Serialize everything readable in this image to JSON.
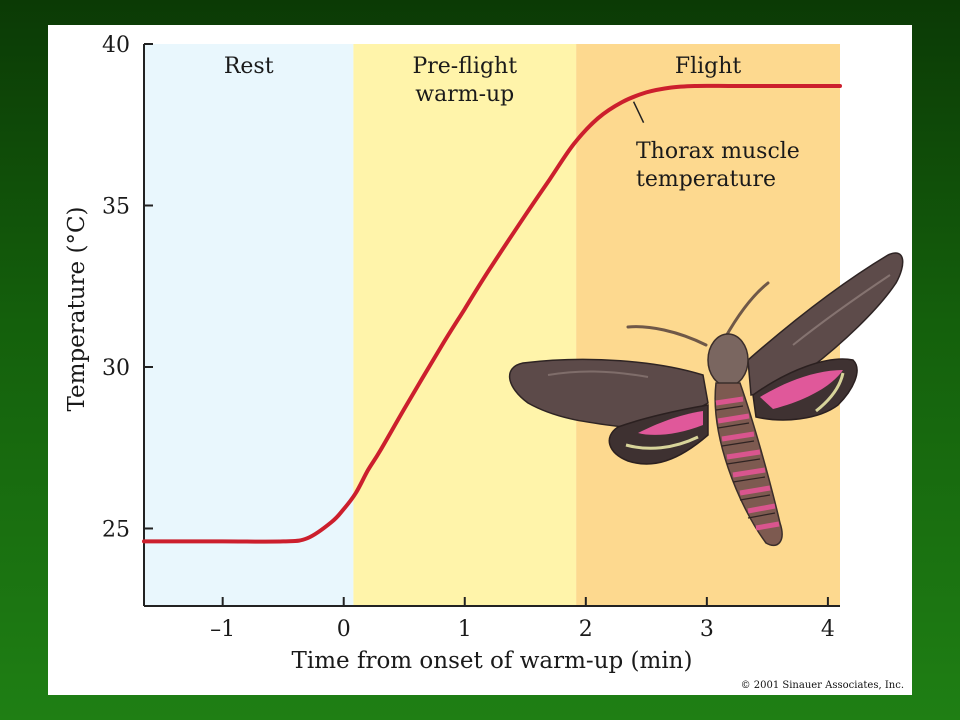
{
  "chart_data": {
    "type": "line",
    "title": "",
    "xlabel": "Time from onset of warm-up (min)",
    "ylabel": "Temperature (°C)",
    "xlim": [
      -1.65,
      4.1
    ],
    "ylim": [
      22.6,
      40.0
    ],
    "x_ticks": [
      -1,
      0,
      1,
      2,
      3,
      4
    ],
    "x_tick_labels": [
      "–1",
      "0",
      "1",
      "2",
      "3",
      "4"
    ],
    "y_ticks": [
      25,
      30,
      35,
      40
    ],
    "y_tick_labels": [
      "25",
      "30",
      "35",
      "40"
    ],
    "regions": [
      {
        "label_lines": [
          "Rest"
        ],
        "x_start": -1.65,
        "x_end": 0.08,
        "color": "#e9f7fd"
      },
      {
        "label_lines": [
          "Pre-flight",
          "warm-up"
        ],
        "x_start": 0.08,
        "x_end": 1.92,
        "color": "#fff4aa"
      },
      {
        "label_lines": [
          "Flight"
        ],
        "x_start": 1.92,
        "x_end": 4.1,
        "color": "#fdd98f"
      }
    ],
    "series": [
      {
        "name": "",
        "color": "#cc1f2d",
        "x": [
          -1.65,
          -1.0,
          -0.5,
          -0.3,
          -0.1,
          0.0,
          0.1,
          0.2,
          0.3,
          0.5,
          0.8,
          1.0,
          1.2,
          1.5,
          1.7,
          1.9,
          2.1,
          2.3,
          2.5,
          2.7,
          2.9,
          3.2,
          3.5,
          4.1
        ],
        "y": [
          24.6,
          24.6,
          24.6,
          24.7,
          25.2,
          25.6,
          26.1,
          26.8,
          27.4,
          28.7,
          30.6,
          31.8,
          33.0,
          34.7,
          35.8,
          36.9,
          37.7,
          38.2,
          38.5,
          38.65,
          38.7,
          38.7,
          38.7,
          38.7
        ]
      }
    ],
    "annotations": [
      {
        "lines": [
          "Thorax muscle",
          "temperature"
        ],
        "points_to": {
          "x": 2.37,
          "y": 38.4
        }
      }
    ],
    "grid": false
  },
  "illustration": {
    "icon": "hawkmoth-illustration"
  },
  "credit": "© 2001 Sinauer Associates, Inc."
}
